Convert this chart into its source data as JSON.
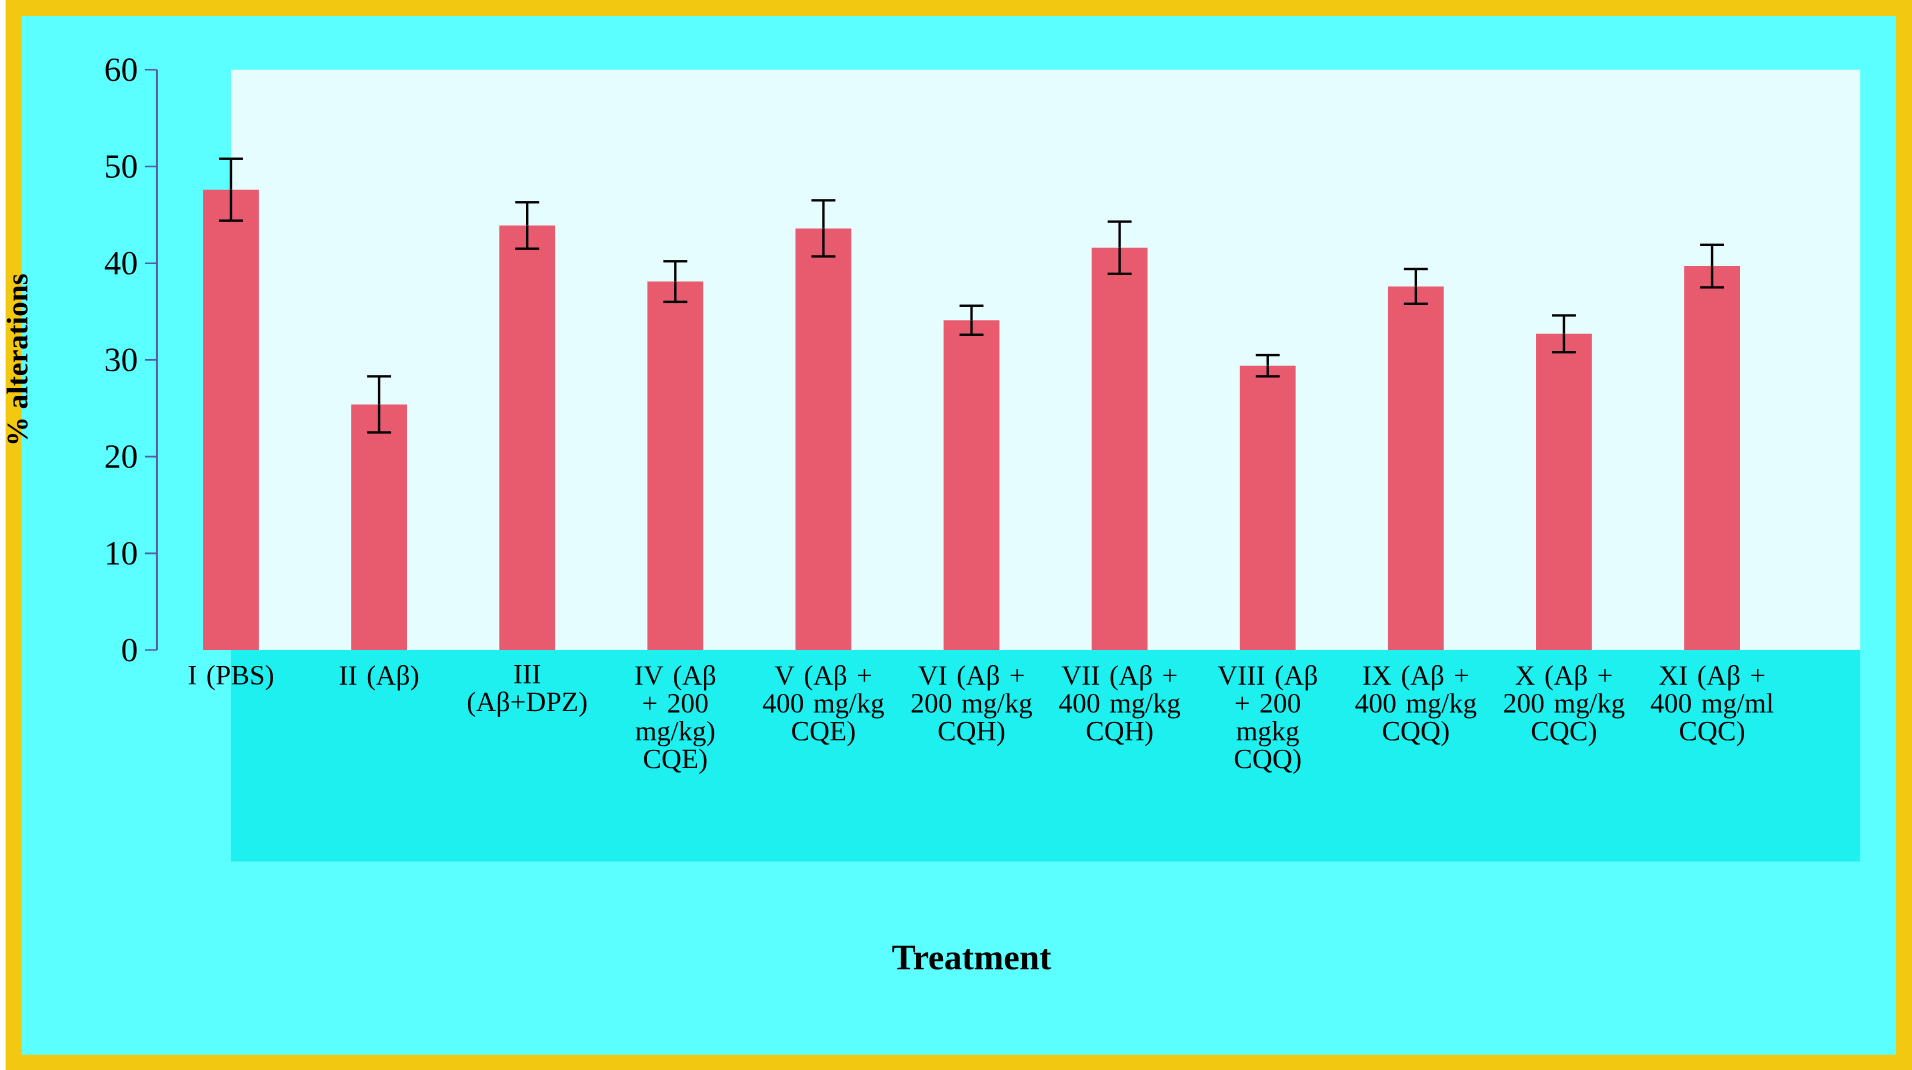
{
  "chart_data": {
    "type": "bar",
    "xlabel": "Treatment",
    "ylabel": "% alterations",
    "categories": [
      "I (PBS)",
      "II (Aβ)",
      "III (Aβ+DPZ)",
      "IV (Aβ + 200 mg/kg) CQE)",
      "V (Aβ + 400 mg/kg CQE)",
      "VI (Aβ + 200 mg/kg CQH)",
      "VII (Aβ + 400 mg/kg CQH)",
      "VIII (Aβ + 200 mgkg CQQ)",
      "IX (Aβ + 400 mg/kg CQQ)",
      "X (Aβ + 200 mg/kg CQC)",
      "XI (Aβ + 400 mg/ml CQC)"
    ],
    "values": [
      47.6,
      25.4,
      43.9,
      38.1,
      43.6,
      34.1,
      41.6,
      29.4,
      37.6,
      32.7,
      39.7
    ],
    "errors": [
      3.2,
      2.9,
      2.4,
      2.1,
      2.9,
      1.5,
      2.7,
      1.1,
      1.8,
      1.9,
      2.2
    ],
    "color": "#e85a6e",
    "ylim": [
      0,
      60
    ],
    "yticks": [
      0,
      10,
      20,
      30,
      40,
      50,
      60
    ]
  }
}
